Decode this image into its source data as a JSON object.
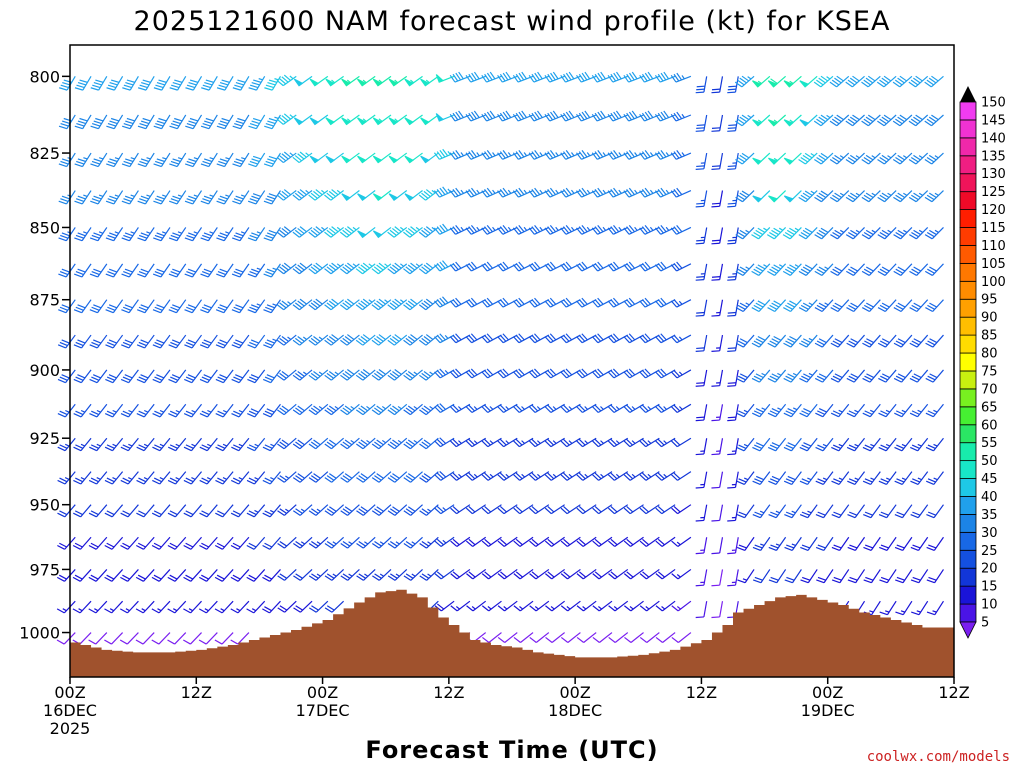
{
  "chart_data": {
    "type": "wind-profile",
    "title": "2025121600 NAM forecast wind profile (kt) for KSEA",
    "xlabel": "Forecast Time (UTC)",
    "credit": "coolwx.com/models",
    "ylim": [
      1018,
      790
    ],
    "y_ticks": [
      800,
      825,
      850,
      875,
      900,
      925,
      950,
      975,
      1000
    ],
    "x_hours_range": [
      0,
      84
    ],
    "x_ticks": [
      {
        "hour": 0,
        "line1": "00Z",
        "line2": "16DEC",
        "line3": "2025"
      },
      {
        "hour": 12,
        "line1": "12Z",
        "line2": "",
        "line3": ""
      },
      {
        "hour": 24,
        "line1": "00Z",
        "line2": "17DEC",
        "line3": ""
      },
      {
        "hour": 36,
        "line1": "12Z",
        "line2": "",
        "line3": ""
      },
      {
        "hour": 48,
        "line1": "00Z",
        "line2": "18DEC",
        "line3": ""
      },
      {
        "hour": 60,
        "line1": "12Z",
        "line2": "",
        "line3": ""
      },
      {
        "hour": 72,
        "line1": "00Z",
        "line2": "19DEC",
        "line3": ""
      },
      {
        "hour": 84,
        "line1": "12Z",
        "line2": "",
        "line3": ""
      }
    ],
    "colorbar": {
      "levels": [
        5,
        10,
        15,
        20,
        25,
        30,
        35,
        40,
        45,
        50,
        55,
        60,
        65,
        70,
        75,
        80,
        85,
        90,
        95,
        100,
        105,
        110,
        115,
        120,
        125,
        130,
        135,
        140,
        145,
        150
      ],
      "colors": [
        "#7a1ff0",
        "#4a14e6",
        "#1a14d8",
        "#1236d8",
        "#1450e0",
        "#1868e6",
        "#1c84e6",
        "#20a0ec",
        "#1ec8e6",
        "#18e6c8",
        "#18ecac",
        "#2ae664",
        "#46f032",
        "#78f020",
        "#c8f010",
        "#ffff00",
        "#ffdc00",
        "#ffbe00",
        "#ffa000",
        "#ff8c00",
        "#ff7800",
        "#ff5a00",
        "#ff3c00",
        "#ff1e00",
        "#f00a28",
        "#f0145a",
        "#f01e82",
        "#f028aa",
        "#f032d2",
        "#f03cf0"
      ]
    },
    "terrain": {
      "color": "#a0522d",
      "hours": [
        0,
        3,
        6,
        9,
        12,
        15,
        18,
        21,
        24,
        27,
        29,
        31,
        33,
        35,
        36,
        38,
        40,
        42,
        44,
        46,
        48,
        51,
        54,
        57,
        60,
        62,
        63,
        65,
        67,
        69,
        71,
        73,
        75,
        78,
        81,
        84
      ],
      "pressure": [
        1004,
        1007,
        1008,
        1008,
        1007,
        1005,
        1002,
        999,
        995,
        988,
        984,
        983,
        986,
        994,
        997,
        1003,
        1005,
        1006,
        1008,
        1009,
        1010,
        1010,
        1009,
        1007,
        1003,
        997,
        992,
        989,
        986,
        985,
        987,
        989,
        992,
        995,
        998,
        998
      ]
    },
    "barbs": {
      "note": "sampled wind field; direction is meteorological degrees (from), speed in kt",
      "hours_step": 1.5,
      "levels": [
        800,
        812.5,
        825,
        837.5,
        850,
        862.5,
        875,
        887.5,
        900,
        912.5,
        925,
        937.5,
        950,
        962.5,
        975,
        987.5,
        1000
      ]
    }
  }
}
